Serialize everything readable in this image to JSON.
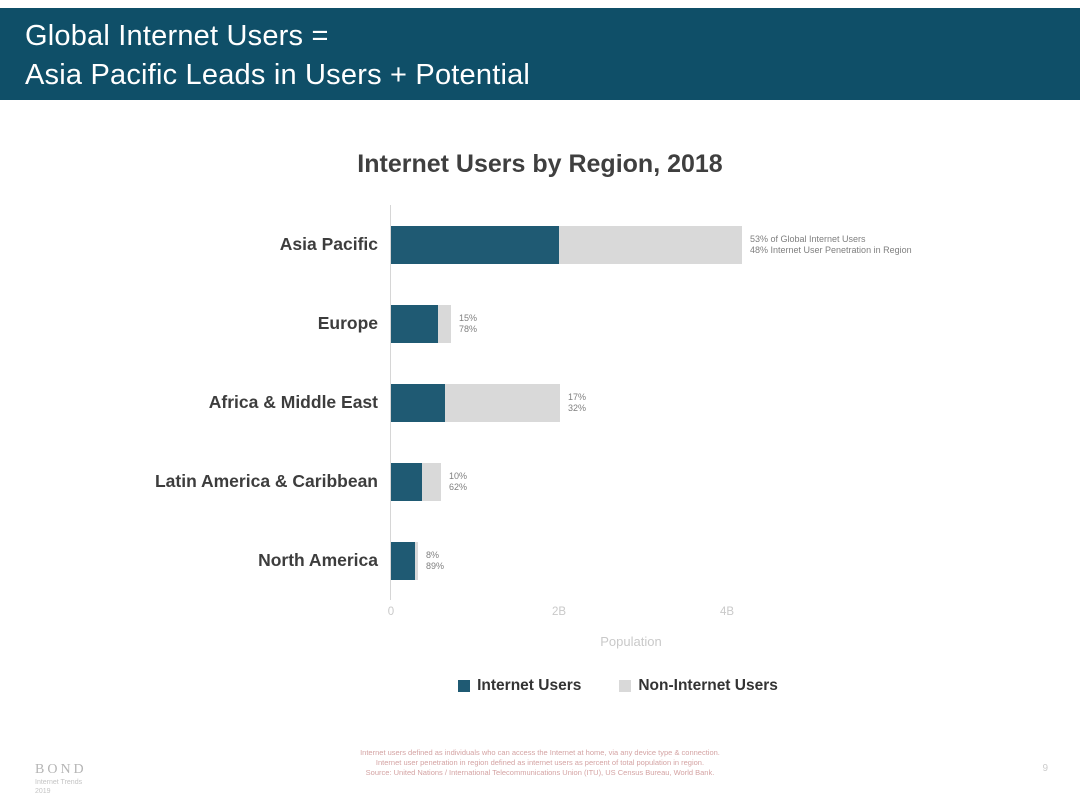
{
  "header": {
    "title_line1": "Global Internet Users =",
    "title_line2": "Asia Pacific Leads in Users + Potential"
  },
  "chart_data": {
    "type": "bar",
    "orientation": "horizontal",
    "stacked": true,
    "title": "Internet Users by Region, 2018",
    "xlabel": "Population",
    "grid": false,
    "legend_position": "bottom",
    "categories": [
      "Asia Pacific",
      "Europe",
      "Africa & Middle East",
      "Latin America & Caribbean",
      "North America"
    ],
    "series": [
      {
        "name": "Internet Users",
        "color": "#1f5a73",
        "values_billions": [
          2.01,
          0.57,
          0.65,
          0.38,
          0.3
        ]
      },
      {
        "name": "Non-Internet Users",
        "color": "#d9d9d9",
        "values_billions": [
          2.18,
          0.16,
          1.37,
          0.23,
          0.04
        ]
      }
    ],
    "pct_of_global_internet_users": [
      53,
      15,
      17,
      10,
      8
    ],
    "penetration_pct_in_region": [
      48,
      78,
      32,
      62,
      89
    ],
    "annotations": [
      {
        "line1": "53% of Global Internet Users",
        "line2": "48% Internet User Penetration in Region"
      },
      {
        "line1": "15%",
        "line2": "78%"
      },
      {
        "line1": "17%",
        "line2": "32%"
      },
      {
        "line1": "10%",
        "line2": "62%"
      },
      {
        "line1": "8%",
        "line2": "89%"
      }
    ],
    "x_ticks": [
      {
        "label": "0",
        "value": 0
      },
      {
        "label": "2B",
        "value": 2
      },
      {
        "label": "4B",
        "value": 4
      }
    ],
    "xlim_billions": [
      0,
      4.5
    ]
  },
  "footer": {
    "source_lines": [
      "Internet users defined as individuals who can access the Internet at home, via any device type & connection.",
      "Internet user penetration in region defined as internet users as percent of total population in region.",
      "Source: United Nations / International Telecommunications Union (ITU), US Census Bureau, World Bank."
    ],
    "brand": "BOND",
    "brand_sub1": "Internet Trends",
    "brand_sub2": "2019",
    "page_number": "9"
  },
  "colors": {
    "header_bg": "#0f4f68",
    "bar_internet": "#1f5a73",
    "bar_non_internet": "#d9d9d9",
    "title_text": "#3f3f3f"
  }
}
